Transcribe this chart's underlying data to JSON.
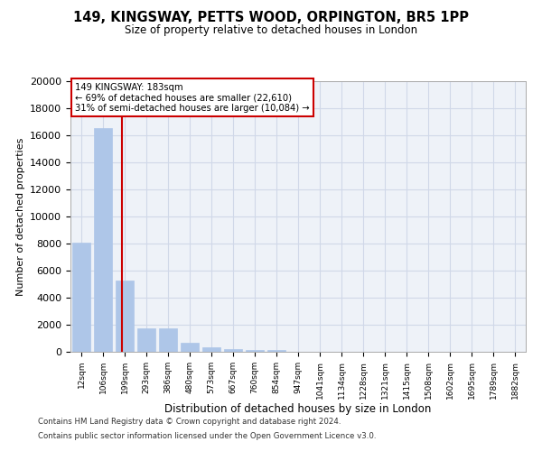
{
  "title_line1": "149, KINGSWAY, PETTS WOOD, ORPINGTON, BR5 1PP",
  "title_line2": "Size of property relative to detached houses in London",
  "xlabel": "Distribution of detached houses by size in London",
  "ylabel": "Number of detached properties",
  "footnote1": "Contains HM Land Registry data © Crown copyright and database right 2024.",
  "footnote2": "Contains public sector information licensed under the Open Government Licence v3.0.",
  "categories": [
    "12sqm",
    "106sqm",
    "199sqm",
    "293sqm",
    "386sqm",
    "480sqm",
    "573sqm",
    "667sqm",
    "760sqm",
    "854sqm",
    "947sqm",
    "1041sqm",
    "1134sqm",
    "1228sqm",
    "1321sqm",
    "1415sqm",
    "1508sqm",
    "1602sqm",
    "1695sqm",
    "1789sqm",
    "1882sqm"
  ],
  "values": [
    8100,
    16500,
    5300,
    1750,
    1750,
    650,
    350,
    200,
    150,
    150,
    0,
    0,
    0,
    0,
    0,
    0,
    0,
    0,
    0,
    0,
    0
  ],
  "bar_color": "#aec6e8",
  "bar_edge_color": "#aec6e8",
  "grid_color": "#d0d8e8",
  "bg_color": "#eef2f8",
  "vline_x": 1.87,
  "vline_color": "#cc0000",
  "annotation_text": "149 KINGSWAY: 183sqm\n← 69% of detached houses are smaller (22,610)\n31% of semi-detached houses are larger (10,084) →",
  "annotation_box_color": "#ffffff",
  "annotation_box_edge": "#cc0000",
  "ylim": [
    0,
    20000
  ],
  "yticks": [
    0,
    2000,
    4000,
    6000,
    8000,
    10000,
    12000,
    14000,
    16000,
    18000,
    20000
  ]
}
